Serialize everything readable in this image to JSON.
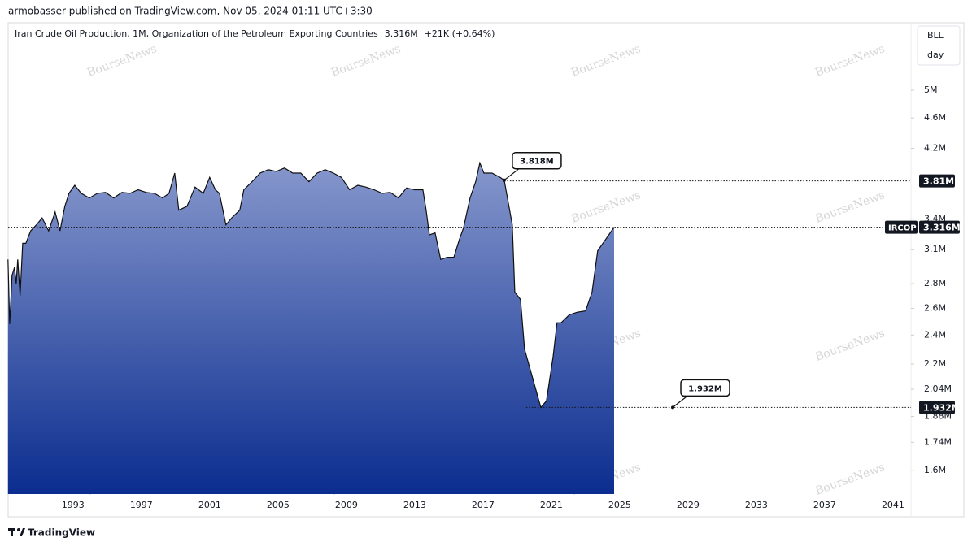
{
  "header": "armobasser published on TradingView.com, Nov 05, 2024 01:11 UTC+3:30",
  "footer": "TradingView",
  "watermark": "BourseNews",
  "chart_data": {
    "type": "area",
    "title": "Iran Crude Oil Production, 1M, Organization of the Petroleum Exporting Countries",
    "change": "+21K (+0.64%)",
    "unit": "BLL",
    "period": "day",
    "color": "#0b2d8f",
    "line_color": "#111111",
    "log": true,
    "x": [
      1989.19,
      1989.29,
      1989.43,
      1989.57,
      1989.67,
      1989.76,
      1989.9,
      1990.05,
      1990.24,
      1990.52,
      1990.86,
      1991.19,
      1991.57,
      1991.95,
      1992.24,
      1992.52,
      1992.76,
      1993.1,
      1993.48,
      1993.95,
      1994.43,
      1994.9,
      1995.38,
      1995.86,
      1996.33,
      1996.81,
      1997.29,
      1997.76,
      1998.24,
      1998.62,
      1998.95,
      1999.19,
      1999.67,
      2000.14,
      2000.62,
      2001.0,
      2001.33,
      2001.57,
      2001.95,
      2002.29,
      2002.76,
      2003.0,
      2003.48,
      2003.95,
      2004.43,
      2004.9,
      2005.38,
      2005.86,
      2006.33,
      2006.81,
      2007.29,
      2007.76,
      2008.24,
      2008.71,
      2009.19,
      2009.67,
      2010.14,
      2010.62,
      2011.1,
      2011.57,
      2012.05,
      2012.52,
      2013.0,
      2013.48,
      2013.67,
      2013.86,
      2014.19,
      2014.52,
      2014.9,
      2015.29,
      2015.62,
      2015.86,
      2016.24,
      2016.57,
      2016.81,
      2017.05,
      2017.52,
      2018.0,
      2018.24,
      2018.71,
      2018.86,
      2019.19,
      2019.43,
      2019.9,
      2020.38,
      2020.71,
      2021.1,
      2021.33,
      2021.57,
      2022.05,
      2022.52,
      2023.0,
      2023.38,
      2023.71,
      2024.19,
      2024.67
    ],
    "values": [
      3.01,
      2.48,
      2.87,
      2.94,
      2.8,
      3.01,
      2.7,
      3.16,
      3.16,
      3.28,
      3.34,
      3.41,
      3.28,
      3.47,
      3.28,
      3.53,
      3.67,
      3.76,
      3.67,
      3.62,
      3.67,
      3.68,
      3.62,
      3.68,
      3.67,
      3.71,
      3.68,
      3.67,
      3.62,
      3.67,
      3.9,
      3.49,
      3.53,
      3.74,
      3.67,
      3.85,
      3.71,
      3.67,
      3.34,
      3.41,
      3.49,
      3.71,
      3.8,
      3.9,
      3.94,
      3.92,
      3.96,
      3.9,
      3.9,
      3.8,
      3.9,
      3.94,
      3.9,
      3.85,
      3.71,
      3.76,
      3.74,
      3.71,
      3.67,
      3.68,
      3.62,
      3.73,
      3.71,
      3.71,
      3.49,
      3.24,
      3.26,
      3.01,
      3.03,
      3.03,
      3.2,
      3.31,
      3.62,
      3.8,
      4.02,
      3.9,
      3.9,
      3.85,
      3.818,
      3.34,
      2.73,
      2.67,
      2.3,
      2.11,
      1.932,
      1.97,
      2.25,
      2.49,
      2.49,
      2.55,
      2.57,
      2.58,
      2.73,
      3.09,
      3.2,
      3.316
    ],
    "xlim": [
      1989.2,
      2042.05
    ],
    "xticks": [
      1993,
      1997,
      2001,
      2005,
      2009,
      2013,
      2017,
      2021,
      2025,
      2029,
      2033,
      2037,
      2041
    ],
    "ylim": [
      1.49,
      6.12
    ],
    "yticks": [
      {
        "value": 1.6,
        "label": "1.6M"
      },
      {
        "value": 1.74,
        "label": "1.74M"
      },
      {
        "value": 1.88,
        "label": "1.88M"
      },
      {
        "value": 2.04,
        "label": "2.04M"
      },
      {
        "value": 2.2,
        "label": "2.2M"
      },
      {
        "value": 2.4,
        "label": "2.4M"
      },
      {
        "value": 2.6,
        "label": "2.6M"
      },
      {
        "value": 2.8,
        "label": "2.8M"
      },
      {
        "value": 3.1,
        "label": "3.1M"
      },
      {
        "value": 3.4,
        "label": "3.4M"
      },
      {
        "value": 4.2,
        "label": "4.2M"
      },
      {
        "value": 4.6,
        "label": "4.6M"
      },
      {
        "value": 5,
        "label": "5M"
      }
    ],
    "annotations": [
      {
        "x": 2018.24,
        "value": 3.818,
        "label": "3.818M"
      },
      {
        "x": 2028.1,
        "value": 1.932,
        "label": "1.932M"
      }
    ],
    "price_lines": [
      {
        "value": 3.81,
        "label": "3.81M"
      },
      {
        "name": "IRCOP",
        "value": 3.316,
        "label": "3.316M"
      },
      {
        "value": 1.932,
        "label": "1.932M"
      }
    ]
  }
}
